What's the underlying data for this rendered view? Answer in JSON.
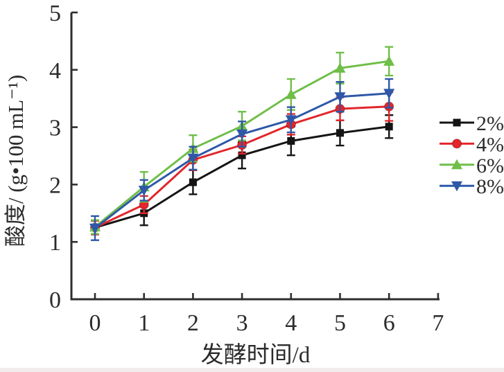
{
  "chart_data": {
    "type": "line",
    "title": "",
    "xlabel": "发酵时间/d",
    "ylabel": "酸度/ (g•100 mL⁻¹)",
    "xlim": [
      0,
      7
    ],
    "ylim": [
      0,
      5
    ],
    "x_ticks": [
      0,
      1,
      2,
      3,
      4,
      5,
      6,
      7
    ],
    "y_ticks": [
      0,
      1,
      2,
      3,
      4,
      5
    ],
    "grid": false,
    "legend_position": "right",
    "error_bars": true,
    "axis_color": "#2e2e2e",
    "text_color": "#2b2b2b",
    "x": [
      0,
      1,
      2,
      3,
      4,
      5,
      6
    ],
    "series": [
      {
        "name": "2%",
        "color": "#141414",
        "marker": "square",
        "values": [
          1.25,
          1.5,
          2.04,
          2.51,
          2.76,
          2.9,
          3.01
        ],
        "errors": [
          0.12,
          0.21,
          0.21,
          0.23,
          0.25,
          0.22,
          0.2
        ]
      },
      {
        "name": "4%",
        "color": "#e2262b",
        "marker": "circle",
        "values": [
          1.25,
          1.65,
          2.43,
          2.69,
          3.05,
          3.32,
          3.36
        ],
        "errors": [
          0.12,
          0.15,
          0.18,
          0.15,
          0.18,
          0.2,
          0.25
        ]
      },
      {
        "name": "6%",
        "color": "#6fbe48",
        "marker": "triangle-up",
        "values": [
          1.26,
          1.96,
          2.63,
          3.02,
          3.57,
          4.03,
          4.15
        ],
        "errors": [
          0.12,
          0.26,
          0.23,
          0.25,
          0.27,
          0.27,
          0.25
        ]
      },
      {
        "name": "8%",
        "color": "#2e58a7",
        "marker": "triangle-down",
        "values": [
          1.24,
          1.9,
          2.46,
          2.88,
          3.13,
          3.53,
          3.59
        ],
        "errors": [
          0.21,
          0.18,
          0.2,
          0.22,
          0.22,
          0.26,
          0.25
        ]
      }
    ]
  }
}
